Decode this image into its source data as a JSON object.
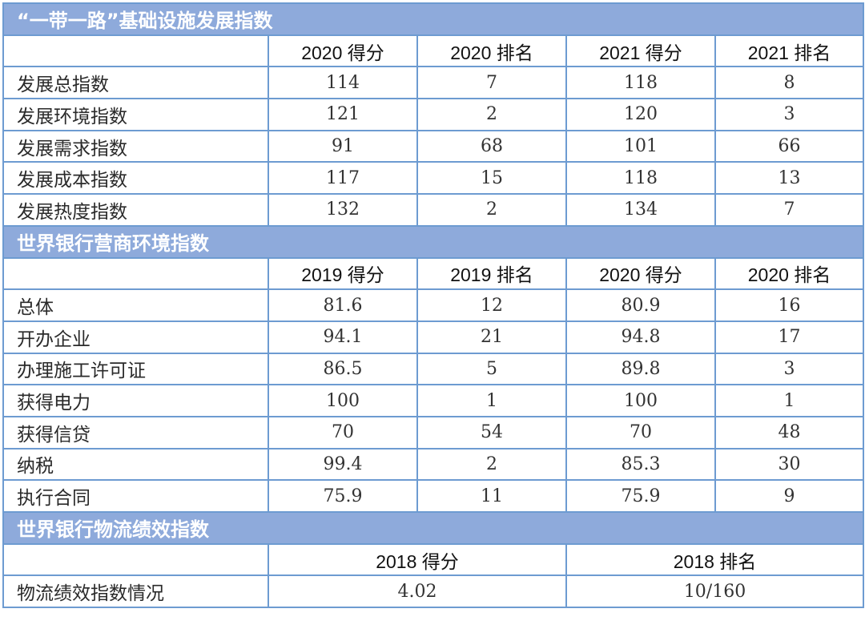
{
  "sections": [
    {
      "title": "“一带一路”基础设施发展指数",
      "headers": [
        "",
        "2020 得分",
        "2020 排名",
        "2021 得分",
        "2021 排名"
      ],
      "rows": [
        {
          "label": "发展总指数",
          "values": [
            "114",
            "7",
            "118",
            "8"
          ]
        },
        {
          "label": "发展环境指数",
          "values": [
            "121",
            "2",
            "120",
            "3"
          ]
        },
        {
          "label": "发展需求指数",
          "values": [
            "91",
            "68",
            "101",
            "66"
          ]
        },
        {
          "label": "发展成本指数",
          "values": [
            "117",
            "15",
            "118",
            "13"
          ]
        },
        {
          "label": "发展热度指数",
          "values": [
            "132",
            "2",
            "134",
            "7"
          ]
        }
      ]
    },
    {
      "title": "世界银行营商环境指数",
      "headers": [
        "",
        "2019 得分",
        "2019 排名",
        "2020 得分",
        "2020 排名"
      ],
      "rows": [
        {
          "label": "总体",
          "values": [
            "81.6",
            "12",
            "80.9",
            "16"
          ]
        },
        {
          "label": "开办企业",
          "values": [
            "94.1",
            "21",
            "94.8",
            "17"
          ]
        },
        {
          "label": "办理施工许可证",
          "values": [
            "86.5",
            "5",
            "89.8",
            "3"
          ]
        },
        {
          "label": "获得电力",
          "values": [
            "100",
            "1",
            "100",
            "1"
          ]
        },
        {
          "label": "获得信贷",
          "values": [
            "70",
            "54",
            "70",
            "48"
          ]
        },
        {
          "label": "纳税",
          "values": [
            "99.4",
            "2",
            "85.3",
            "30"
          ]
        },
        {
          "label": "执行合同",
          "values": [
            "75.9",
            "11",
            "75.9",
            "9"
          ]
        }
      ]
    },
    {
      "title": "世界银行物流绩效指数",
      "headers": [
        "",
        "2018 得分",
        "2018 排名"
      ],
      "rows": [
        {
          "label": "物流绩效指数情况",
          "values": [
            "4.02",
            "10/160"
          ]
        }
      ]
    }
  ],
  "colors": {
    "section_header_bg": "#8eaadb",
    "border": "#6d9bd1",
    "section_header_text": "#ffffff"
  }
}
